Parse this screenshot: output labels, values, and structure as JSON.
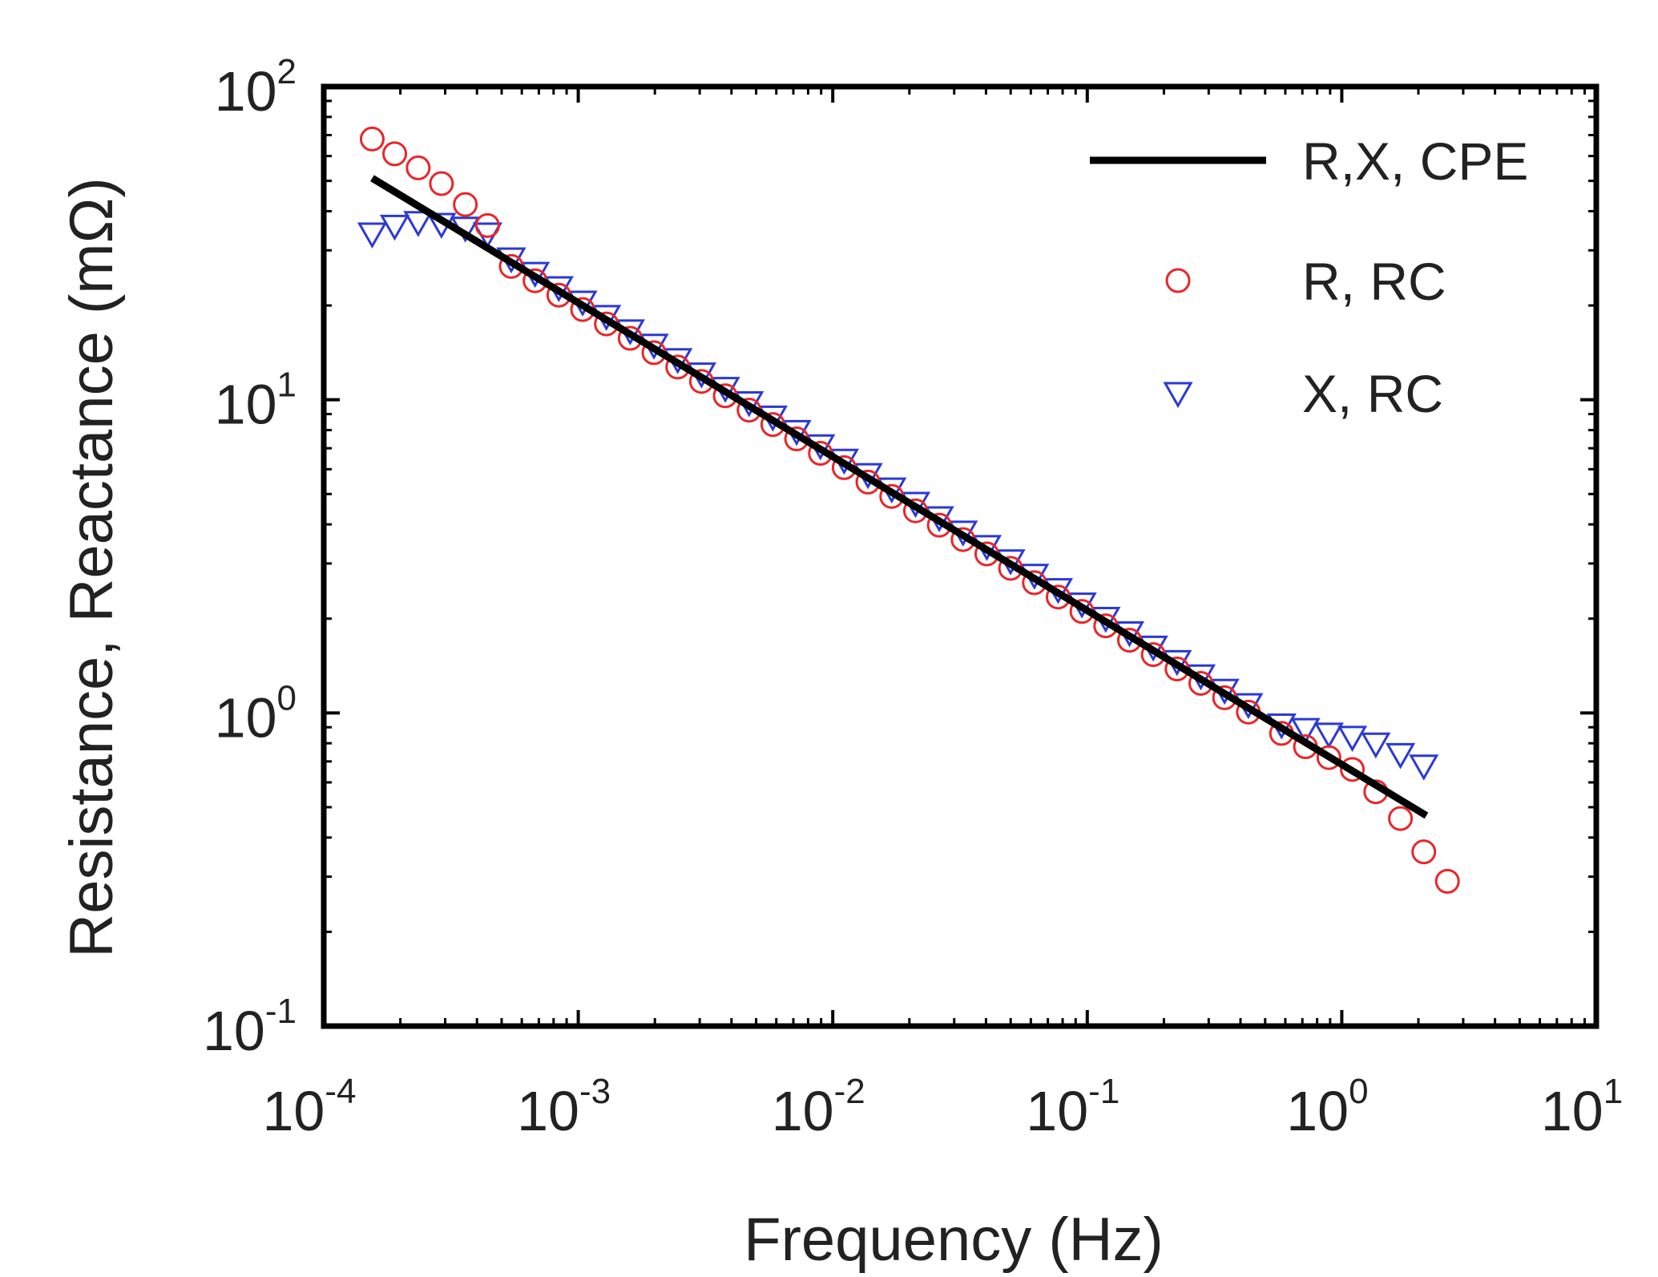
{
  "chart_data": {
    "type": "scatter",
    "title": "",
    "xlabel": "Frequency (Hz)",
    "ylabel": "Resistance, Reactance (mΩ)",
    "xscale": "log",
    "yscale": "log",
    "xlim": [
      0.0001,
      10
    ],
    "ylim": [
      0.1,
      100
    ],
    "grid": false,
    "legend_position": "top-right",
    "x_ticks": [
      {
        "base": "10",
        "exp": "-4"
      },
      {
        "base": "10",
        "exp": "-3"
      },
      {
        "base": "10",
        "exp": "-2"
      },
      {
        "base": "10",
        "exp": "-1"
      },
      {
        "base": "10",
        "exp": "0"
      },
      {
        "base": "10",
        "exp": "1"
      }
    ],
    "y_ticks": [
      {
        "base": "10",
        "exp": "-1"
      },
      {
        "base": "10",
        "exp": "0"
      },
      {
        "base": "10",
        "exp": "1"
      },
      {
        "base": "10",
        "exp": "2"
      }
    ],
    "series": [
      {
        "name": "R,X, CPE",
        "kind": "line",
        "color": "#000000",
        "points": [
          [
            0.000155,
            51
          ],
          [
            2.15,
            0.47
          ]
        ]
      },
      {
        "name": "R, RC",
        "kind": "circle",
        "color": "#e8262b",
        "low_points": [
          [
            0.000155,
            68
          ],
          [
            0.00019,
            61
          ],
          [
            0.000235,
            55
          ],
          [
            0.00029,
            49
          ],
          [
            0.00036,
            42
          ],
          [
            0.00044,
            36
          ]
        ],
        "high_points": [
          [
            0.58,
            0.86
          ],
          [
            0.72,
            0.78
          ],
          [
            0.89,
            0.72
          ],
          [
            1.1,
            0.66
          ],
          [
            1.36,
            0.56
          ],
          [
            1.7,
            0.46
          ],
          [
            2.1,
            0.36
          ],
          [
            2.6,
            0.29
          ]
        ],
        "mid_offset": 0.97
      },
      {
        "name": "X, RC",
        "kind": "triangle-down",
        "color": "#2b39d6",
        "low_points": [
          [
            0.000155,
            34
          ],
          [
            0.00019,
            36
          ],
          [
            0.000235,
            37
          ],
          [
            0.00029,
            36.5
          ],
          [
            0.00036,
            35.5
          ],
          [
            0.00044,
            34
          ]
        ],
        "high_points": [
          [
            0.58,
            0.92
          ],
          [
            0.72,
            0.89
          ],
          [
            0.89,
            0.86
          ],
          [
            1.1,
            0.84
          ],
          [
            1.36,
            0.8
          ],
          [
            1.7,
            0.74
          ],
          [
            2.1,
            0.68
          ]
        ],
        "mid_offset": 1.03
      }
    ]
  }
}
